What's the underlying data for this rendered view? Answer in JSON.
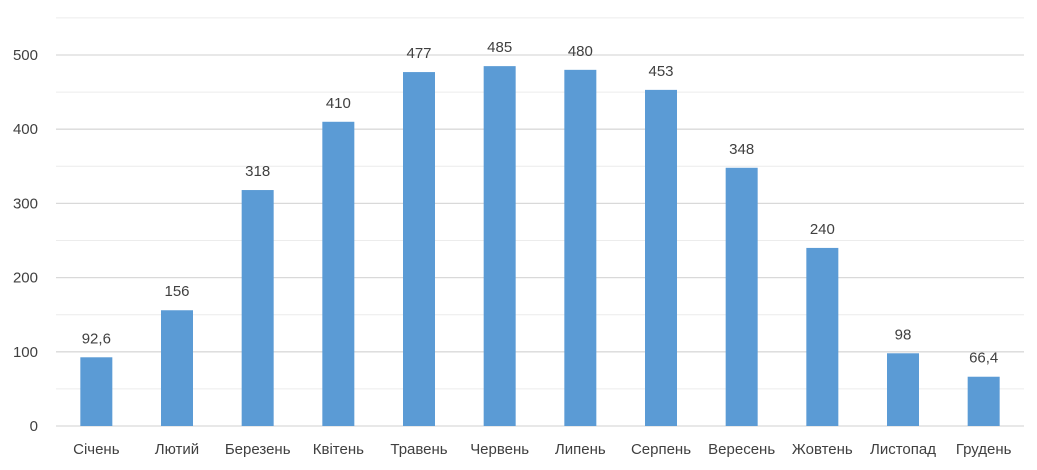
{
  "chart_data": {
    "type": "bar",
    "categories": [
      "Січень",
      "Лютий",
      "Березень",
      "Квітень",
      "Травень",
      "Червень",
      "Липень",
      "Серпень",
      "Вересень",
      "Жовтень",
      "Листопад",
      "Грудень"
    ],
    "values": [
      92.6,
      156,
      318,
      410,
      477,
      485,
      480,
      453,
      348,
      240,
      98,
      66.4
    ],
    "value_labels": [
      "92,6",
      "156",
      "318",
      "410",
      "477",
      "485",
      "480",
      "453",
      "348",
      "240",
      "98",
      "66,4"
    ],
    "ylim": [
      0,
      500
    ],
    "yticks": [
      0,
      100,
      200,
      300,
      400,
      500
    ],
    "ytick_labels": [
      "0",
      "100",
      "200",
      "300",
      "400",
      "500"
    ],
    "grid": true,
    "title": "",
    "xlabel": "",
    "ylabel": "",
    "bar_color": "#5b9bd5"
  }
}
